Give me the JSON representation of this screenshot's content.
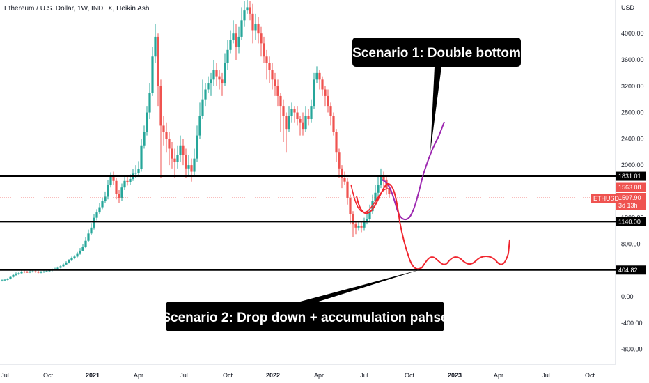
{
  "header": {
    "title": "Ethereum / U.S. Dollar, 1W, INDEX, Heikin Ashi"
  },
  "price_axis": {
    "unit_label": "USD",
    "ticks": [
      "4000.00",
      "3600.00",
      "3200.00",
      "2800.00",
      "2400.00",
      "2000.00",
      "1200.00",
      "800.00",
      "0.00",
      "-400.00",
      "-800.00"
    ]
  },
  "time_axis": {
    "labels": [
      "Jul",
      "Oct",
      "2021",
      "Apr",
      "Jul",
      "Oct",
      "2022",
      "Apr",
      "Jul",
      "Oct",
      "2023",
      "Apr",
      "Jul",
      "Oct"
    ],
    "year_labels": [
      "2021",
      "2022",
      "2023"
    ]
  },
  "levels": [
    {
      "label": "1831.01"
    },
    {
      "label": "1140.00"
    },
    {
      "label": "404.82"
    }
  ],
  "price_tags": {
    "symbol": "ETHUSD",
    "last_price": "1507.90",
    "countdown": "3d 13h",
    "ha_close": "1563.08"
  },
  "annotations": {
    "scenario1": "Scenario 1: Double bottom",
    "scenario2": "Scenario 2: Drop down + accumulation pahse"
  },
  "colors": {
    "bull": "#26a69a",
    "bear": "#ef5350",
    "scenario1_path": "#9c27b0",
    "scenario2_path": "#f0262f",
    "level_line": "#000000",
    "callout_bg": "#000000",
    "symbol_tag": "#ef5350"
  },
  "chart_data": {
    "type": "candlestick",
    "series": "Heikin Ashi weekly ETH/USD",
    "ylim": [
      -900,
      4300
    ],
    "horizontal_levels": [
      1831.01,
      1140.0,
      404.82
    ],
    "projection_paths": [
      {
        "scenario": "Scenario 1: Double bottom",
        "color": "purple",
        "points": [
          [
            "2022-08-15",
            1780
          ],
          [
            "2022-09-12",
            1400
          ],
          [
            "2022-10-10",
            1180
          ],
          [
            "2022-10-31",
            1300
          ],
          [
            "2022-11-21",
            1900
          ],
          [
            "2022-12-12",
            2350
          ],
          [
            "2023-01-02",
            2680
          ]
        ]
      },
      {
        "scenario": "Scenario 2: Drop down + accumulation pahse",
        "color": "red",
        "points": [
          [
            "2022-08-15",
            1780
          ],
          [
            "2022-09-12",
            1400
          ],
          [
            "2022-09-26",
            950
          ],
          [
            "2022-10-10",
            420
          ],
          [
            "2022-10-24",
            650
          ],
          [
            "2022-11-07",
            450
          ],
          [
            "2022-11-28",
            650
          ],
          [
            "2022-12-19",
            450
          ],
          [
            "2023-01-09",
            650
          ],
          [
            "2023-02-06",
            450
          ],
          [
            "2023-03-13",
            650
          ],
          [
            "2023-04-03",
            450
          ],
          [
            "2023-04-17",
            850
          ]
        ]
      }
    ]
  }
}
